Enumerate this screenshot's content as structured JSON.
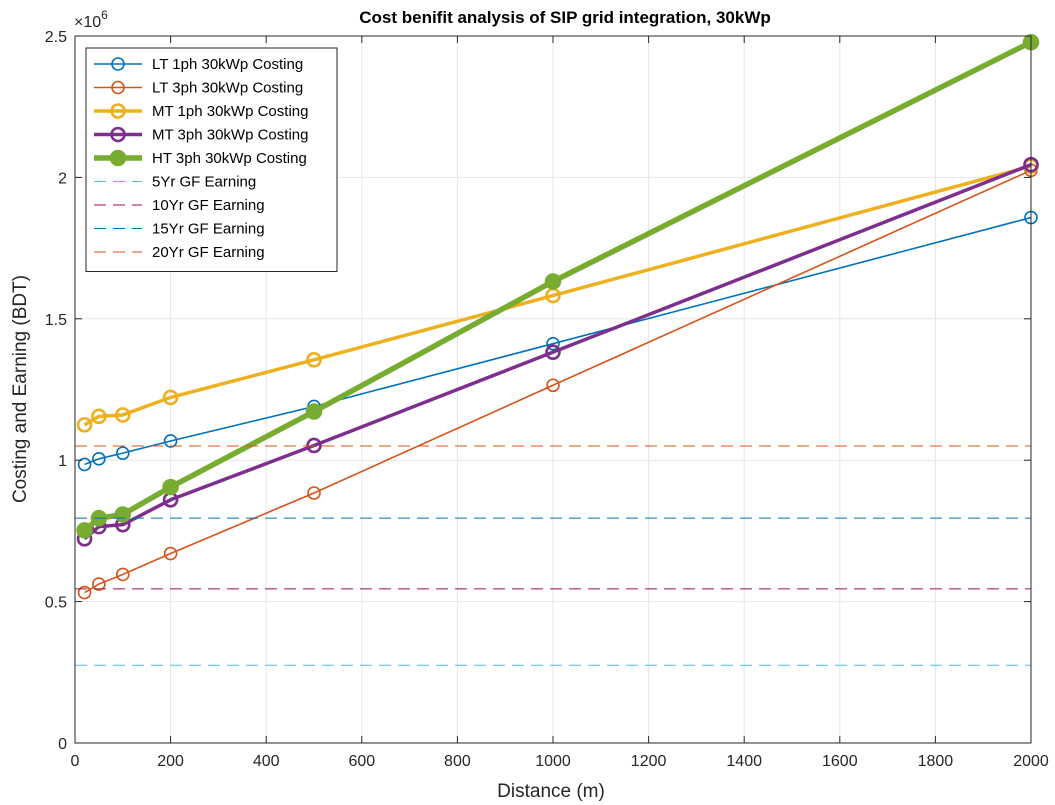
{
  "chart_data": {
    "type": "line",
    "title": "Cost benifit analysis of SIP grid integration, 30kWp",
    "xlabel": "Distance (m)",
    "ylabel": "Costing and Earning (BDT)",
    "y_exponent_label": "×10",
    "y_exponent_power": "6",
    "xlim": [
      0,
      2000
    ],
    "ylim": [
      0,
      2500000
    ],
    "x_ticks": [
      0,
      200,
      400,
      600,
      800,
      1000,
      1200,
      1400,
      1600,
      1800,
      2000
    ],
    "x_tick_labels": [
      "0",
      "200",
      "400",
      "600",
      "800",
      "1000",
      "1200",
      "1400",
      "1600",
      "1800",
      "2000"
    ],
    "y_ticks": [
      0,
      500000,
      1000000,
      1500000,
      2000000,
      2500000
    ],
    "y_tick_labels": [
      "0",
      "0.5",
      "1",
      "1.5",
      "2",
      "2.5"
    ],
    "grid": true,
    "legend_position": "top-left",
    "series": [
      {
        "name": "LT 1ph 30kWp Costing",
        "color": "#0072BD",
        "style": "solid-marker",
        "width": "thin",
        "x": [
          20,
          50,
          100,
          200,
          500,
          1000,
          2000
        ],
        "y": [
          985000,
          1005000,
          1025000,
          1068000,
          1190000,
          1412000,
          1858000
        ]
      },
      {
        "name": "LT 3ph 30kWp Costing",
        "color": "#D95319",
        "style": "solid-marker",
        "width": "thin",
        "x": [
          20,
          50,
          100,
          200,
          500,
          1000,
          2000
        ],
        "y": [
          532000,
          562000,
          596000,
          670000,
          884000,
          1265000,
          2025000
        ]
      },
      {
        "name": "MT 1ph 30kWp Costing",
        "color": "#EDB120",
        "style": "solid-marker",
        "width": "medium",
        "x": [
          20,
          50,
          100,
          200,
          500,
          1000,
          2000
        ],
        "y": [
          1125000,
          1155000,
          1160000,
          1222000,
          1355000,
          1582000,
          2040000
        ]
      },
      {
        "name": "MT 3ph 30kWp Costing",
        "color": "#7E2F8E",
        "style": "solid-marker",
        "width": "medium",
        "x": [
          20,
          50,
          100,
          200,
          500,
          1000,
          2000
        ],
        "y": [
          722000,
          765000,
          772000,
          860000,
          1052000,
          1382000,
          2045000
        ]
      },
      {
        "name": "HT 3ph 30kWp Costing",
        "color": "#77AC30",
        "style": "solid-filled-marker",
        "width": "thick",
        "x": [
          20,
          50,
          100,
          200,
          500,
          1000,
          2000
        ],
        "y": [
          752000,
          795000,
          808000,
          905000,
          1172000,
          1632000,
          2478000
        ]
      },
      {
        "name": "5Yr GF Earning",
        "color": "#4DBEEE",
        "style": "dashed",
        "x": [
          0,
          2000
        ],
        "y": [
          275000,
          275000
        ]
      },
      {
        "name": "10Yr GF Earning",
        "color": "#A2142F",
        "style": "dashed",
        "x": [
          0,
          2000
        ],
        "y": [
          545000,
          545000
        ]
      },
      {
        "name": "15Yr GF Earning",
        "color": "#0072BD",
        "style": "dashed",
        "x": [
          0,
          2000
        ],
        "y": [
          795000,
          795000
        ]
      },
      {
        "name": "20Yr GF Earning",
        "color": "#D95319",
        "style": "dashed",
        "x": [
          0,
          2000
        ],
        "y": [
          1050000,
          1050000
        ]
      }
    ]
  }
}
